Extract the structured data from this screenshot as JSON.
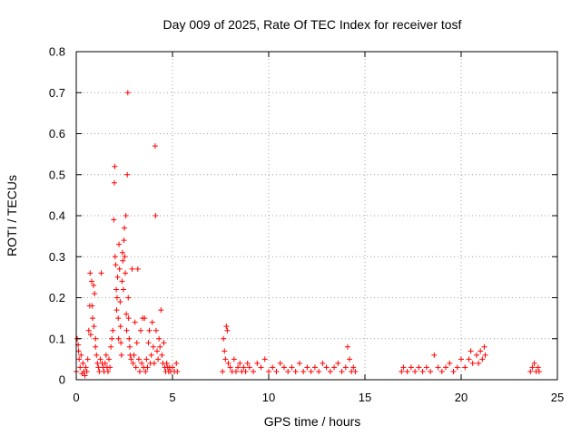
{
  "chart_data": {
    "type": "scatter",
    "title": "Day 009 of 2025, Rate Of TEC Index for receiver tosf",
    "xlabel": "GPS time / hours",
    "ylabel": "ROTI / TECUs",
    "xlim": [
      0,
      25
    ],
    "ylim": [
      0,
      0.8
    ],
    "grid": true,
    "marker": "+",
    "marker_color": "#ff0000",
    "x_ticks": [
      0,
      5,
      10,
      15,
      20,
      25
    ],
    "x_tick_labels": [
      "0",
      "5",
      "10",
      "15",
      "20",
      "25"
    ],
    "y_ticks": [
      0,
      0.1,
      0.2,
      0.3,
      0.4,
      0.5,
      0.6,
      0.7,
      0.8
    ],
    "y_tick_labels": [
      "0",
      "0.1",
      "0.2",
      "0.3",
      "0.4",
      "0.5",
      "0.6",
      "0.7",
      "0.8"
    ],
    "series": [
      {
        "name": "ROTI",
        "points": [
          [
            0.0,
            0.02
          ],
          [
            0.05,
            0.1
          ],
          [
            0.1,
            0.085
          ],
          [
            0.12,
            0.07
          ],
          [
            0.15,
            0.05
          ],
          [
            0.2,
            0.03
          ],
          [
            0.25,
            0.06
          ],
          [
            0.3,
            0.015
          ],
          [
            0.35,
            0.04
          ],
          [
            0.4,
            0.02
          ],
          [
            0.45,
            0.01
          ],
          [
            0.5,
            0.03
          ],
          [
            0.55,
            0.02
          ],
          [
            0.6,
            0.05
          ],
          [
            0.65,
            0.12
          ],
          [
            0.7,
            0.18
          ],
          [
            0.72,
            0.26
          ],
          [
            0.75,
            0.11
          ],
          [
            0.8,
            0.24
          ],
          [
            0.82,
            0.18
          ],
          [
            0.85,
            0.15
          ],
          [
            0.9,
            0.23
          ],
          [
            0.92,
            0.13
          ],
          [
            0.95,
            0.21
          ],
          [
            1.0,
            0.08
          ],
          [
            1.0,
            0.1
          ],
          [
            1.05,
            0.06
          ],
          [
            1.1,
            0.04
          ],
          [
            1.15,
            0.03
          ],
          [
            1.2,
            0.02
          ],
          [
            1.25,
            0.05
          ],
          [
            1.3,
            0.26
          ],
          [
            1.35,
            0.04
          ],
          [
            1.4,
            0.03
          ],
          [
            1.45,
            0.02
          ],
          [
            1.5,
            0.04
          ],
          [
            1.55,
            0.06
          ],
          [
            1.6,
            0.03
          ],
          [
            1.65,
            0.02
          ],
          [
            1.7,
            0.05
          ],
          [
            1.75,
            0.03
          ],
          [
            1.8,
            0.08
          ],
          [
            1.85,
            0.1
          ],
          [
            1.9,
            0.12
          ],
          [
            1.95,
            0.39
          ],
          [
            1.98,
            0.48
          ],
          [
            2.0,
            0.52
          ],
          [
            2.02,
            0.3
          ],
          [
            2.05,
            0.28
          ],
          [
            2.08,
            0.22
          ],
          [
            2.1,
            0.17
          ],
          [
            2.12,
            0.2
          ],
          [
            2.15,
            0.25
          ],
          [
            2.18,
            0.15
          ],
          [
            2.2,
            0.1
          ],
          [
            2.22,
            0.33
          ],
          [
            2.25,
            0.27
          ],
          [
            2.28,
            0.19
          ],
          [
            2.3,
            0.13
          ],
          [
            2.32,
            0.09
          ],
          [
            2.35,
            0.06
          ],
          [
            2.38,
            0.24
          ],
          [
            2.4,
            0.31
          ],
          [
            2.42,
            0.29
          ],
          [
            2.45,
            0.22
          ],
          [
            2.48,
            0.34
          ],
          [
            2.5,
            0.37
          ],
          [
            2.52,
            0.3
          ],
          [
            2.55,
            0.26
          ],
          [
            2.58,
            0.4
          ],
          [
            2.6,
            0.16
          ],
          [
            2.62,
            0.12
          ],
          [
            2.65,
            0.5
          ],
          [
            2.68,
            0.7
          ],
          [
            2.7,
            0.2
          ],
          [
            2.72,
            0.15
          ],
          [
            2.75,
            0.1
          ],
          [
            2.78,
            0.08
          ],
          [
            2.8,
            0.06
          ],
          [
            2.85,
            0.05
          ],
          [
            2.9,
            0.27
          ],
          [
            2.95,
            0.04
          ],
          [
            3.0,
            0.06
          ],
          [
            3.05,
            0.14
          ],
          [
            3.1,
            0.03
          ],
          [
            3.15,
            0.09
          ],
          [
            3.2,
            0.27
          ],
          [
            3.25,
            0.05
          ],
          [
            3.3,
            0.02
          ],
          [
            3.35,
            0.12
          ],
          [
            3.4,
            0.04
          ],
          [
            3.45,
            0.15
          ],
          [
            3.5,
            0.03
          ],
          [
            3.55,
            0.15
          ],
          [
            3.6,
            0.02
          ],
          [
            3.65,
            0.05
          ],
          [
            3.7,
            0.03
          ],
          [
            3.75,
            0.09
          ],
          [
            3.8,
            0.12
          ],
          [
            3.85,
            0.04
          ],
          [
            3.9,
            0.06
          ],
          [
            3.95,
            0.14
          ],
          [
            4.0,
            0.08
          ],
          [
            4.05,
            0.04
          ],
          [
            4.1,
            0.57
          ],
          [
            4.12,
            0.4
          ],
          [
            4.15,
            0.12
          ],
          [
            4.2,
            0.07
          ],
          [
            4.25,
            0.05
          ],
          [
            4.3,
            0.1
          ],
          [
            4.35,
            0.08
          ],
          [
            4.4,
            0.17
          ],
          [
            4.45,
            0.06
          ],
          [
            4.5,
            0.04
          ],
          [
            4.55,
            0.09
          ],
          [
            4.6,
            0.03
          ],
          [
            4.65,
            0.02
          ],
          [
            4.7,
            0.04
          ],
          [
            4.75,
            0.03
          ],
          [
            4.8,
            0.02
          ],
          [
            4.85,
            0.03
          ],
          [
            4.9,
            0.02
          ],
          [
            5.0,
            0.03
          ],
          [
            5.1,
            0.02
          ],
          [
            5.2,
            0.04
          ],
          [
            5.25,
            0.02
          ],
          [
            7.6,
            0.02
          ],
          [
            7.65,
            0.1
          ],
          [
            7.7,
            0.07
          ],
          [
            7.75,
            0.05
          ],
          [
            7.8,
            0.13
          ],
          [
            7.85,
            0.12
          ],
          [
            7.9,
            0.04
          ],
          [
            8.0,
            0.03
          ],
          [
            8.1,
            0.02
          ],
          [
            8.2,
            0.05
          ],
          [
            8.3,
            0.02
          ],
          [
            8.4,
            0.03
          ],
          [
            8.5,
            0.04
          ],
          [
            8.6,
            0.02
          ],
          [
            8.7,
            0.03
          ],
          [
            8.8,
            0.02
          ],
          [
            8.9,
            0.04
          ],
          [
            9.0,
            0.03
          ],
          [
            9.2,
            0.02
          ],
          [
            9.4,
            0.04
          ],
          [
            9.6,
            0.03
          ],
          [
            9.8,
            0.05
          ],
          [
            10.0,
            0.02
          ],
          [
            10.2,
            0.03
          ],
          [
            10.4,
            0.02
          ],
          [
            10.6,
            0.04
          ],
          [
            10.8,
            0.03
          ],
          [
            11.0,
            0.02
          ],
          [
            11.2,
            0.03
          ],
          [
            11.4,
            0.02
          ],
          [
            11.6,
            0.04
          ],
          [
            11.8,
            0.02
          ],
          [
            12.0,
            0.03
          ],
          [
            12.2,
            0.02
          ],
          [
            12.4,
            0.03
          ],
          [
            12.6,
            0.02
          ],
          [
            12.8,
            0.04
          ],
          [
            13.0,
            0.03
          ],
          [
            13.2,
            0.02
          ],
          [
            13.4,
            0.03
          ],
          [
            13.6,
            0.04
          ],
          [
            13.8,
            0.02
          ],
          [
            14.0,
            0.03
          ],
          [
            14.1,
            0.08
          ],
          [
            14.2,
            0.05
          ],
          [
            14.3,
            0.02
          ],
          [
            14.4,
            0.03
          ],
          [
            14.5,
            0.02
          ],
          [
            16.9,
            0.02
          ],
          [
            17.0,
            0.03
          ],
          [
            17.2,
            0.02
          ],
          [
            17.4,
            0.03
          ],
          [
            17.6,
            0.02
          ],
          [
            17.8,
            0.03
          ],
          [
            18.0,
            0.02
          ],
          [
            18.2,
            0.03
          ],
          [
            18.4,
            0.02
          ],
          [
            18.6,
            0.06
          ],
          [
            18.8,
            0.03
          ],
          [
            19.0,
            0.02
          ],
          [
            19.2,
            0.03
          ],
          [
            19.4,
            0.04
          ],
          [
            19.6,
            0.02
          ],
          [
            19.8,
            0.03
          ],
          [
            20.0,
            0.05
          ],
          [
            20.2,
            0.03
          ],
          [
            20.4,
            0.05
          ],
          [
            20.5,
            0.07
          ],
          [
            20.6,
            0.04
          ],
          [
            20.8,
            0.06
          ],
          [
            20.9,
            0.04
          ],
          [
            21.0,
            0.07
          ],
          [
            21.1,
            0.05
          ],
          [
            21.2,
            0.08
          ],
          [
            21.25,
            0.06
          ],
          [
            23.6,
            0.02
          ],
          [
            23.7,
            0.03
          ],
          [
            23.8,
            0.04
          ],
          [
            23.9,
            0.02
          ],
          [
            24.0,
            0.03
          ],
          [
            24.05,
            0.02
          ]
        ]
      }
    ]
  }
}
